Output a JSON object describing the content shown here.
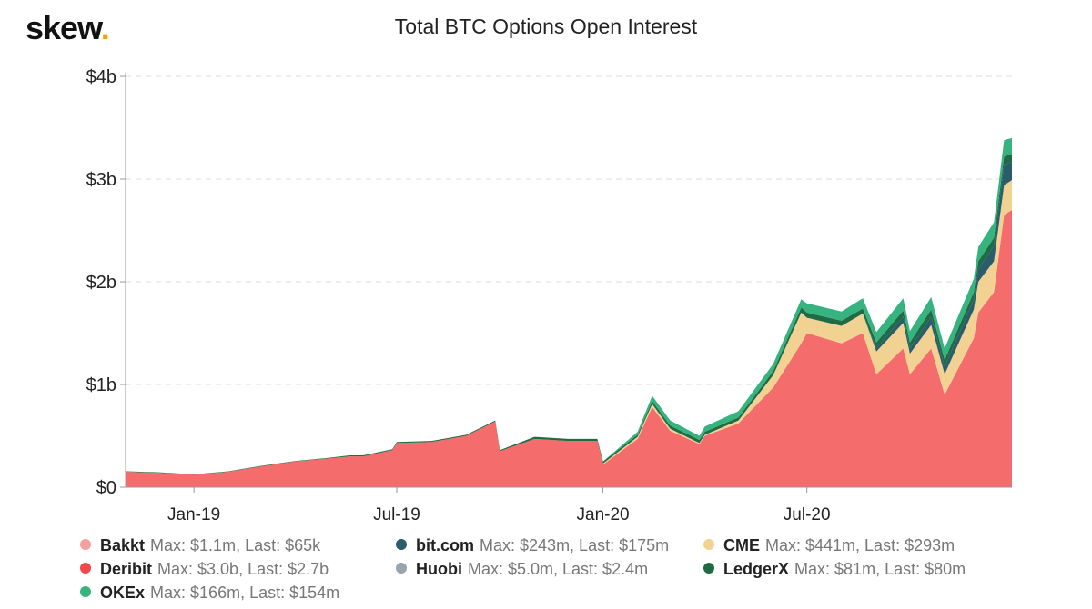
{
  "brand": {
    "name": "skew",
    "dot": "."
  },
  "chart_data": {
    "type": "area",
    "title": "Total BTC Options Open Interest",
    "stacked": true,
    "x_ticks": [
      "Jan-19",
      "Jul-19",
      "Jan-20",
      "Jul-20"
    ],
    "y_ticks": [
      "$0",
      "$1b",
      "$2b",
      "$3b",
      "$4b"
    ],
    "ylim": [
      0,
      4
    ],
    "y_unit": "billions USD",
    "grid": "horizontal dashed",
    "legend_position": "bottom",
    "x": [
      "2018-11-01",
      "2018-12-01",
      "2019-01-01",
      "2019-02-01",
      "2019-03-01",
      "2019-04-01",
      "2019-05-01",
      "2019-05-20",
      "2019-06-01",
      "2019-06-27",
      "2019-07-01",
      "2019-08-01",
      "2019-09-01",
      "2019-09-27",
      "2019-10-01",
      "2019-11-01",
      "2019-12-01",
      "2019-12-27",
      "2020-01-01",
      "2020-02-01",
      "2020-02-14",
      "2020-03-01",
      "2020-03-27",
      "2020-04-01",
      "2020-05-01",
      "2020-06-01",
      "2020-06-26",
      "2020-07-01",
      "2020-08-01",
      "2020-08-20",
      "2020-09-01",
      "2020-09-25",
      "2020-10-01",
      "2020-10-20",
      "2020-11-01",
      "2020-11-27",
      "2020-12-01",
      "2020-12-15",
      "2020-12-24",
      "2020-12-31"
    ],
    "series": [
      {
        "name": "Bakkt",
        "color": "#f4a0a0",
        "values": [
          0,
          0,
          0,
          0,
          0,
          0,
          0,
          0,
          0,
          0,
          0,
          0,
          0,
          0,
          0,
          0,
          0,
          0,
          0,
          0,
          0,
          0,
          0,
          0,
          0,
          0,
          0,
          0,
          0,
          0,
          0,
          0,
          0,
          0,
          0,
          0,
          0,
          0,
          0,
          0
        ]
      },
      {
        "name": "Deribit",
        "color": "#f46c6c",
        "values": [
          0.15,
          0.14,
          0.12,
          0.15,
          0.2,
          0.25,
          0.28,
          0.3,
          0.3,
          0.36,
          0.43,
          0.44,
          0.5,
          0.64,
          0.35,
          0.47,
          0.45,
          0.45,
          0.22,
          0.47,
          0.78,
          0.55,
          0.42,
          0.5,
          0.62,
          0.97,
          1.4,
          1.5,
          1.4,
          1.5,
          1.1,
          1.35,
          1.1,
          1.35,
          0.9,
          1.45,
          1.7,
          1.9,
          2.65,
          2.7
        ]
      },
      {
        "name": "CME",
        "color": "#f2d293",
        "values": [
          0,
          0,
          0,
          0,
          0,
          0,
          0,
          0,
          0,
          0,
          0,
          0,
          0,
          0,
          0,
          0,
          0,
          0,
          0.01,
          0.02,
          0.03,
          0.02,
          0.01,
          0.01,
          0.03,
          0.12,
          0.3,
          0.15,
          0.17,
          0.19,
          0.22,
          0.25,
          0.2,
          0.23,
          0.2,
          0.28,
          0.3,
          0.3,
          0.29,
          0.29
        ]
      },
      {
        "name": "bit.com",
        "color": "#2a5c6c",
        "values": [
          0,
          0,
          0,
          0,
          0,
          0,
          0,
          0,
          0,
          0,
          0,
          0,
          0,
          0,
          0,
          0,
          0,
          0,
          0,
          0,
          0,
          0,
          0,
          0,
          0,
          0,
          0,
          0,
          0,
          0,
          0.03,
          0.06,
          0.05,
          0.08,
          0.07,
          0.1,
          0.12,
          0.15,
          0.2,
          0.175
        ]
      },
      {
        "name": "Huobi",
        "color": "#9aa4ad",
        "values": [
          0,
          0,
          0,
          0,
          0,
          0,
          0,
          0,
          0,
          0,
          0,
          0,
          0,
          0,
          0,
          0,
          0,
          0,
          0,
          0,
          0,
          0,
          0,
          0,
          0,
          0,
          0,
          0,
          0,
          0,
          0,
          0,
          0,
          0,
          0,
          0,
          0,
          0,
          0,
          0
        ]
      },
      {
        "name": "LedgerX",
        "color": "#1f6b45",
        "values": [
          0.005,
          0.005,
          0.005,
          0.005,
          0.005,
          0.005,
          0.005,
          0.01,
          0.01,
          0.01,
          0.01,
          0.01,
          0.01,
          0.01,
          0.01,
          0.02,
          0.02,
          0.02,
          0.02,
          0.02,
          0.03,
          0.03,
          0.03,
          0.03,
          0.03,
          0.04,
          0.05,
          0.05,
          0.05,
          0.05,
          0.06,
          0.06,
          0.06,
          0.07,
          0.07,
          0.07,
          0.08,
          0.08,
          0.08,
          0.08
        ]
      },
      {
        "name": "OKEx",
        "color": "#36b37e",
        "values": [
          0,
          0,
          0,
          0,
          0,
          0,
          0,
          0,
          0,
          0,
          0,
          0,
          0,
          0,
          0,
          0,
          0,
          0,
          0,
          0.03,
          0.05,
          0.05,
          0.04,
          0.05,
          0.06,
          0.07,
          0.08,
          0.09,
          0.09,
          0.1,
          0.1,
          0.12,
          0.11,
          0.12,
          0.11,
          0.13,
          0.14,
          0.15,
          0.16,
          0.154
        ]
      }
    ]
  },
  "legend": [
    {
      "name": "Bakkt",
      "stats": "Max: $1.1m, Last: $65k",
      "color": "#f4a0a0"
    },
    {
      "name": "bit.com",
      "stats": "Max: $243m, Last: $175m",
      "color": "#2a5c6c"
    },
    {
      "name": "CME",
      "stats": "Max: $441m, Last: $293m",
      "color": "#f2d293"
    },
    {
      "name": "Deribit",
      "stats": "Max: $3.0b, Last: $2.7b",
      "color": "#f04848"
    },
    {
      "name": "Huobi",
      "stats": "Max: $5.0m, Last: $2.4m",
      "color": "#9aa4ad"
    },
    {
      "name": "LedgerX",
      "stats": "Max: $81m, Last: $80m",
      "color": "#1f6b45"
    },
    {
      "name": "OKEx",
      "stats": "Max: $166m, Last: $154m",
      "color": "#36b37e"
    }
  ]
}
